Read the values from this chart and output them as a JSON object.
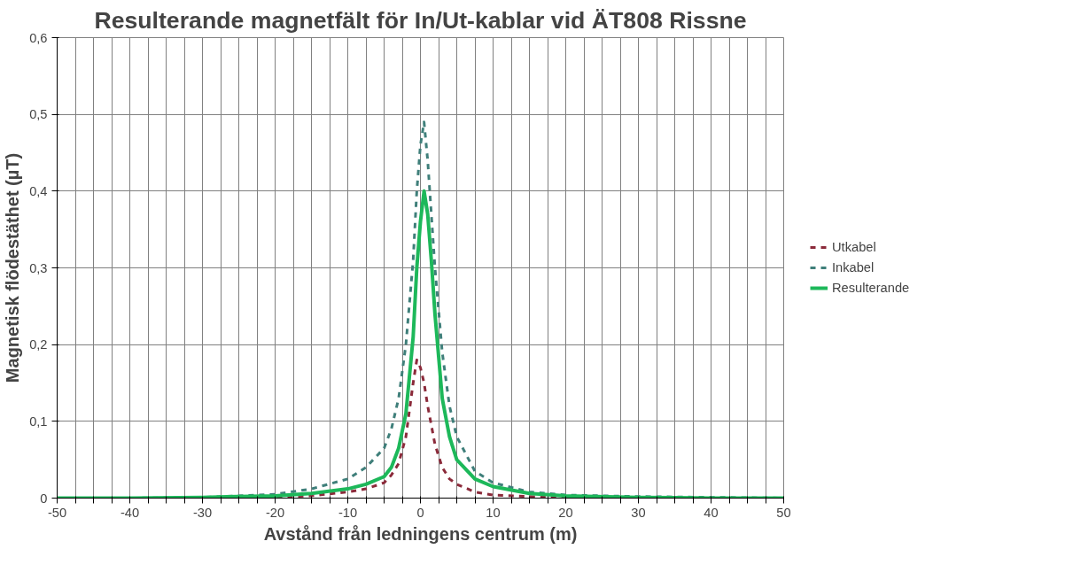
{
  "chart_data": {
    "type": "line",
    "title": "Resulterande magnetfält för In/Ut-kablar vid ÄT808 Rissne",
    "xlabel": "Avstånd från ledningens centrum (m)",
    "ylabel": "Magnetisk flödestäthet (µT)",
    "x": [
      -50,
      -40,
      -30,
      -20,
      -15,
      -10,
      -7.5,
      -5,
      -4,
      -3,
      -2,
      -1,
      -0.5,
      0,
      0.5,
      1,
      1.5,
      2,
      3,
      4,
      5,
      7.5,
      10,
      15,
      20,
      30,
      40,
      50
    ],
    "series": [
      {
        "name": "Utkabel",
        "color": "#8b2a3a",
        "line_style": "dashed",
        "values": [
          null,
          null,
          0,
          0.001,
          0.003,
          0.008,
          0.012,
          0.02,
          0.03,
          0.045,
          0.08,
          0.15,
          0.18,
          0.17,
          0.15,
          0.12,
          0.095,
          0.07,
          0.04,
          0.025,
          0.018,
          0.008,
          0.004,
          0.002,
          0.001,
          0,
          null,
          null
        ]
      },
      {
        "name": "Inkabel",
        "color": "#3f7f7a",
        "line_style": "dashed",
        "values": [
          0,
          0,
          0.001,
          0.005,
          0.012,
          0.025,
          0.04,
          0.065,
          0.09,
          0.13,
          0.2,
          0.31,
          0.4,
          0.46,
          0.49,
          0.44,
          0.37,
          0.3,
          0.19,
          0.12,
          0.08,
          0.035,
          0.02,
          0.008,
          0.004,
          0.002,
          0.001,
          0
        ]
      },
      {
        "name": "Resulterande",
        "color": "#1db85a",
        "line_style": "solid",
        "values": [
          0,
          0,
          0.001,
          0.003,
          0.006,
          0.012,
          0.018,
          0.028,
          0.04,
          0.065,
          0.11,
          0.21,
          0.3,
          0.36,
          0.4,
          0.37,
          0.31,
          0.24,
          0.13,
          0.08,
          0.05,
          0.025,
          0.015,
          0.006,
          0.003,
          0.001,
          0,
          0
        ]
      }
    ],
    "xlim": [
      -50,
      50
    ],
    "ylim": [
      0,
      0.6
    ],
    "xticks": [
      -50,
      {
        "value": -47.5,
        "label": null
      },
      {
        "value": -45,
        "label": null
      },
      {
        "value": -42.5,
        "label": null
      },
      -40,
      {
        "value": -37.5,
        "label": null
      },
      {
        "value": -35,
        "label": null
      },
      {
        "value": -32.5,
        "label": null
      },
      -30,
      {
        "value": -27.5,
        "label": null
      },
      {
        "value": -25,
        "label": null
      },
      {
        "value": -22.5,
        "label": null
      },
      -20,
      {
        "value": -17.5,
        "label": null
      },
      {
        "value": -15,
        "label": null
      },
      {
        "value": -12.5,
        "label": null
      },
      -10,
      {
        "value": -7.5,
        "label": null
      },
      {
        "value": -5,
        "label": null
      },
      {
        "value": -2.5,
        "label": null
      },
      0,
      {
        "value": 2.5,
        "label": null
      },
      {
        "value": 5,
        "label": null
      },
      {
        "value": 7.5,
        "label": null
      },
      10,
      {
        "value": 12.5,
        "label": null
      },
      {
        "value": 15,
        "label": null
      },
      {
        "value": 17.5,
        "label": null
      },
      20,
      {
        "value": 22.5,
        "label": null
      },
      {
        "value": 25,
        "label": null
      },
      {
        "value": 27.5,
        "label": null
      },
      30,
      {
        "value": 32.5,
        "label": null
      },
      {
        "value": 35,
        "label": null
      },
      {
        "value": 37.5,
        "label": null
      },
      40,
      {
        "value": 42.5,
        "label": null
      },
      {
        "value": 45,
        "label": null
      },
      {
        "value": 47.5,
        "label": null
      },
      50
    ],
    "yticks": [
      0,
      {
        "value": 0.1,
        "label": "0,1"
      },
      {
        "value": 0.2,
        "label": "0,2"
      },
      {
        "value": 0.3,
        "label": "0,3"
      },
      {
        "value": 0.4,
        "label": "0,4"
      },
      {
        "value": 0.5,
        "label": "0,5"
      },
      {
        "value": 0.6,
        "label": "0,6"
      }
    ],
    "grid": true,
    "legend": "right",
    "marker": "none"
  }
}
